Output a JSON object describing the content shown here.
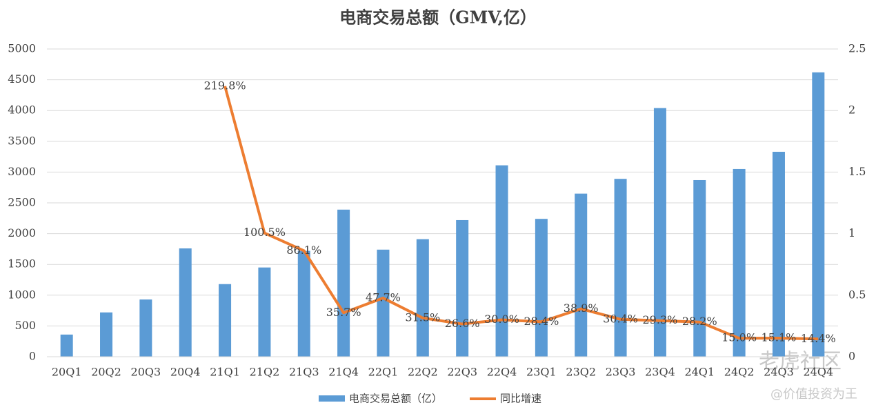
{
  "chart_data": {
    "type": "bar-line",
    "title": "电商交易总额（GMV,亿）",
    "categories": [
      "20Q1",
      "20Q2",
      "20Q3",
      "20Q4",
      "21Q1",
      "21Q2",
      "21Q3",
      "21Q4",
      "22Q1",
      "22Q2",
      "22Q3",
      "22Q4",
      "23Q1",
      "23Q2",
      "23Q3",
      "23Q4",
      "24Q1",
      "24Q2",
      "24Q3",
      "24Q4"
    ],
    "series": [
      {
        "name": "电商交易总额（亿）",
        "type": "bar",
        "color": "#5b9bd5",
        "values": [
          360,
          720,
          930,
          1760,
          1180,
          1450,
          1720,
          2390,
          1740,
          1910,
          2220,
          3110,
          2240,
          2650,
          2890,
          4040,
          2870,
          3050,
          3330,
          4620
        ]
      },
      {
        "name": "同比增速",
        "type": "line",
        "axis": "y2",
        "color": "#ed7d31",
        "values": [
          null,
          null,
          null,
          null,
          2.198,
          1.005,
          0.861,
          0.357,
          0.477,
          0.315,
          0.266,
          0.3,
          0.284,
          0.389,
          0.304,
          0.293,
          0.282,
          0.15,
          0.151,
          0.144
        ],
        "value_labels": [
          null,
          null,
          null,
          null,
          "219.8%",
          "100.5%",
          "86.1%",
          "35.7%",
          "47.7%",
          "31.5%",
          "26.6%",
          "30.0%",
          "28.4%",
          "38.9%",
          "30.4%",
          "29.3%",
          "28.2%",
          "15.0%",
          "15.1%",
          "14.4%"
        ]
      }
    ],
    "ylim": [
      0,
      5000
    ],
    "yticks": [
      0,
      500,
      1000,
      1500,
      2000,
      2500,
      3000,
      3500,
      4000,
      4500,
      5000
    ],
    "y2lim": [
      0,
      2.5
    ],
    "y2ticks": [
      0,
      0.5,
      1,
      1.5,
      2,
      2.5
    ],
    "grid": true,
    "legend": "bottom",
    "watermark": [
      "老虎社区",
      "@价值投资为王"
    ]
  }
}
